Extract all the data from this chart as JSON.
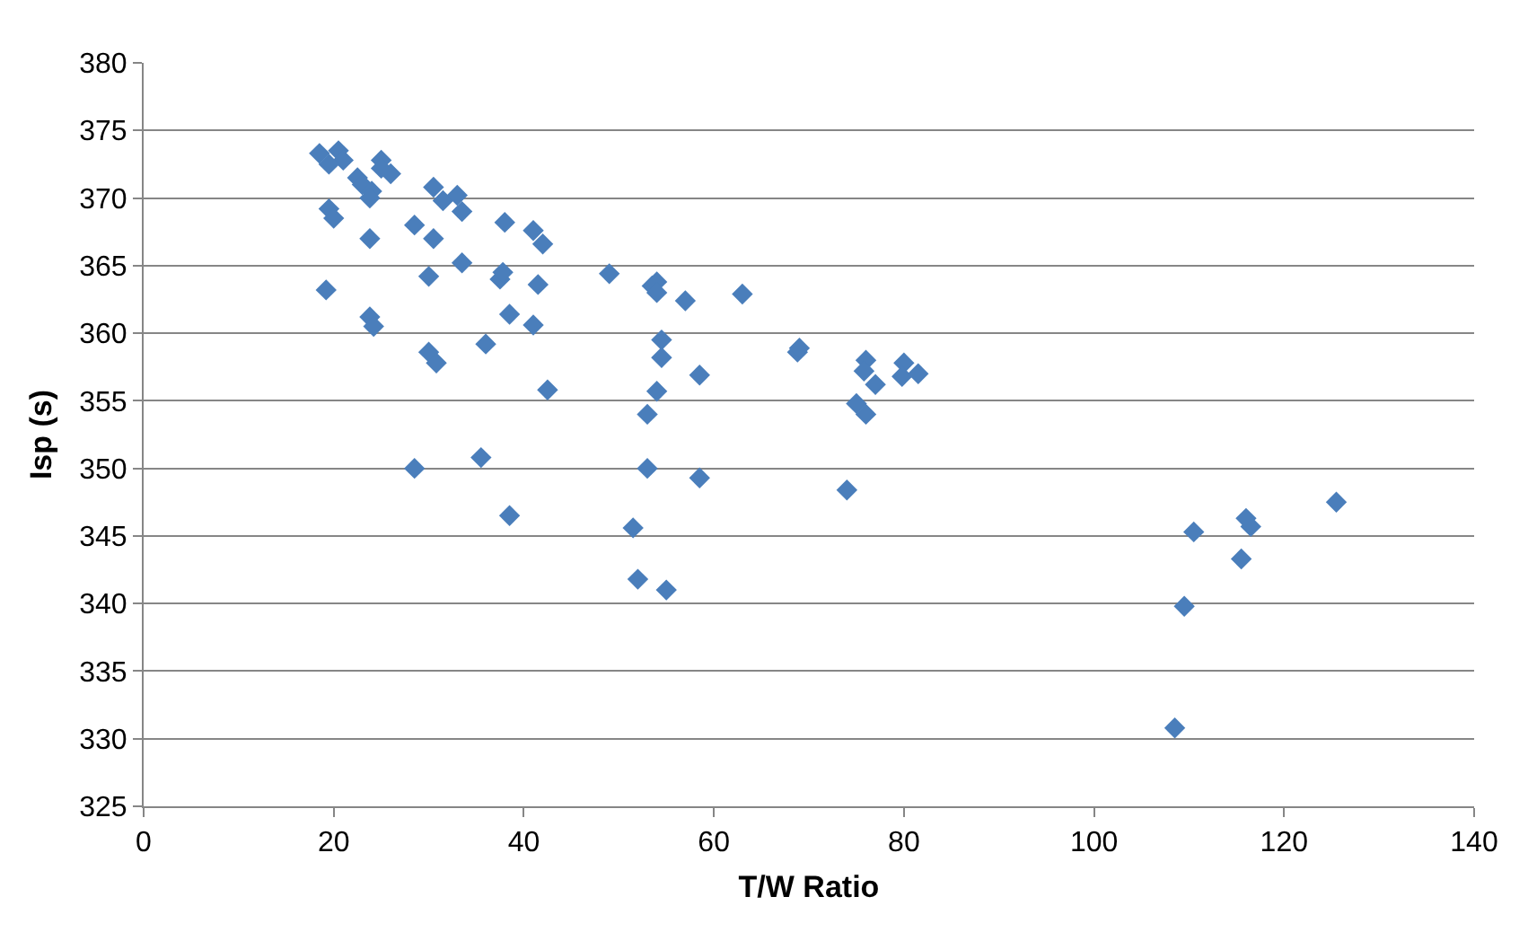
{
  "chart_data": {
    "type": "scatter",
    "xlabel": "T/W Ratio",
    "ylabel": "Isp (s)",
    "marker": "diamond",
    "grid": "y",
    "xlim": [
      0,
      140
    ],
    "xticks": [
      0,
      20,
      40,
      60,
      80,
      100,
      120,
      140
    ],
    "ylim": [
      325,
      380
    ],
    "yticks": [
      325,
      330,
      335,
      340,
      345,
      350,
      355,
      360,
      365,
      370,
      375,
      380
    ],
    "series": [
      {
        "color": "#4a7ebb",
        "x": [
          18.5,
          20.5,
          21,
          19.5,
          22.5,
          23,
          24,
          23.8,
          25,
          25,
          26,
          19.5,
          20,
          23.8,
          28.5,
          30.5,
          31.5,
          33,
          33.5,
          30.5,
          30,
          33.5,
          19.2,
          23.8,
          24.2,
          30,
          30.8,
          28.5,
          36,
          37.5,
          37.8,
          38,
          38.5,
          41,
          42,
          41.5,
          41,
          42.5,
          35.5,
          38.5,
          49,
          53.5,
          54,
          54,
          57,
          63,
          54.5,
          54.5,
          58.5,
          54,
          53,
          53,
          58.5,
          51.5,
          52,
          55,
          68.8,
          69,
          76,
          75.8,
          77,
          80,
          79.8,
          81.5,
          75,
          76,
          74,
          108.5,
          109.5,
          110.5,
          115.5,
          116,
          116.5,
          125.5
        ],
        "values": [
          373.3,
          373.5,
          372.8,
          372.5,
          371.5,
          371,
          370.5,
          370,
          372.8,
          372.2,
          371.8,
          369.2,
          368.5,
          367,
          368,
          370.8,
          369.8,
          370.2,
          369,
          367,
          364.2,
          365.2,
          363.2,
          361.2,
          360.5,
          358.6,
          357.8,
          350,
          359.2,
          364,
          364.5,
          368.2,
          361.4,
          367.6,
          366.6,
          363.6,
          360.6,
          355.8,
          350.8,
          346.5,
          364.4,
          363.5,
          363.8,
          363,
          362.4,
          362.9,
          359.5,
          358.2,
          356.9,
          355.7,
          354,
          350,
          349.3,
          345.6,
          341.8,
          341,
          358.6,
          358.9,
          358,
          357.2,
          356.2,
          357.8,
          356.8,
          357,
          354.8,
          354,
          348.4,
          330.8,
          339.8,
          345.3,
          343.3,
          346.3,
          345.7,
          347.5
        ]
      }
    ]
  }
}
